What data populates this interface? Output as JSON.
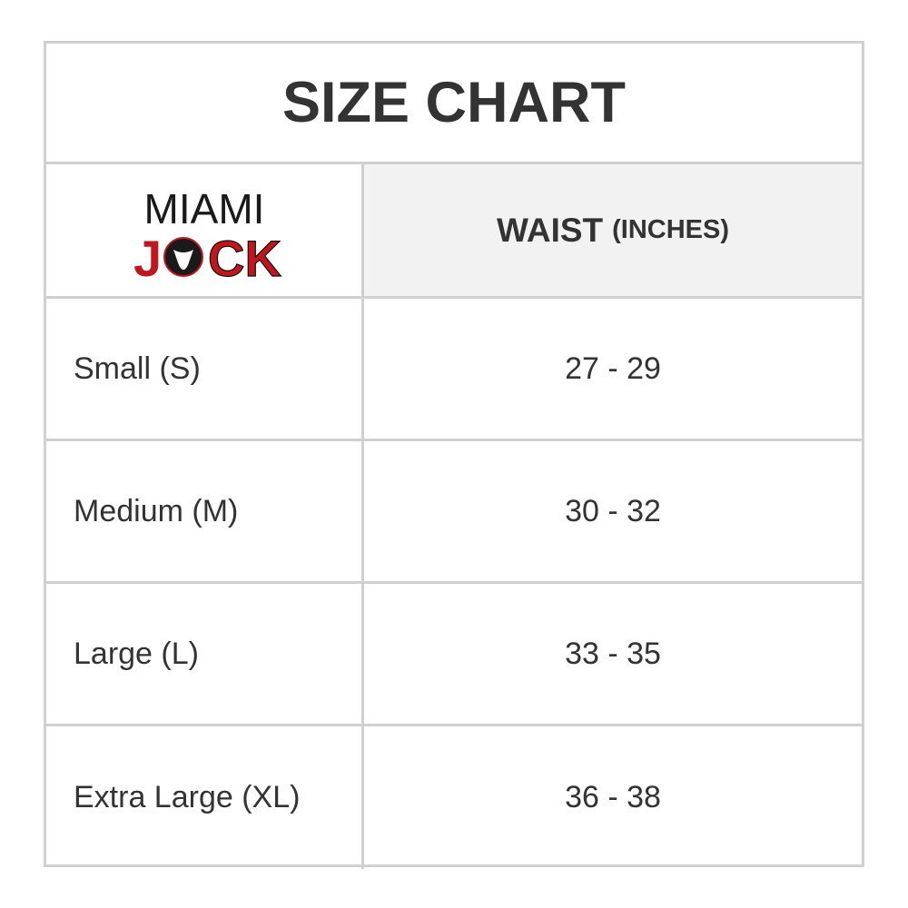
{
  "title": "SIZE CHART",
  "logo": {
    "text_top": "MIAMI",
    "text_bottom": "JOCK",
    "colors": {
      "black": "#1a1a1a",
      "red": "#c0161e"
    }
  },
  "header": {
    "column_label": "WAIST",
    "unit": "(INCHES)"
  },
  "rows": [
    {
      "size": "Small (S)",
      "waist": "27 - 29"
    },
    {
      "size": "Medium (M)",
      "waist": "30 - 32"
    },
    {
      "size": "Large (L)",
      "waist": "33 - 35"
    },
    {
      "size": "Extra Large (XL)",
      "waist": "36 - 38"
    }
  ]
}
